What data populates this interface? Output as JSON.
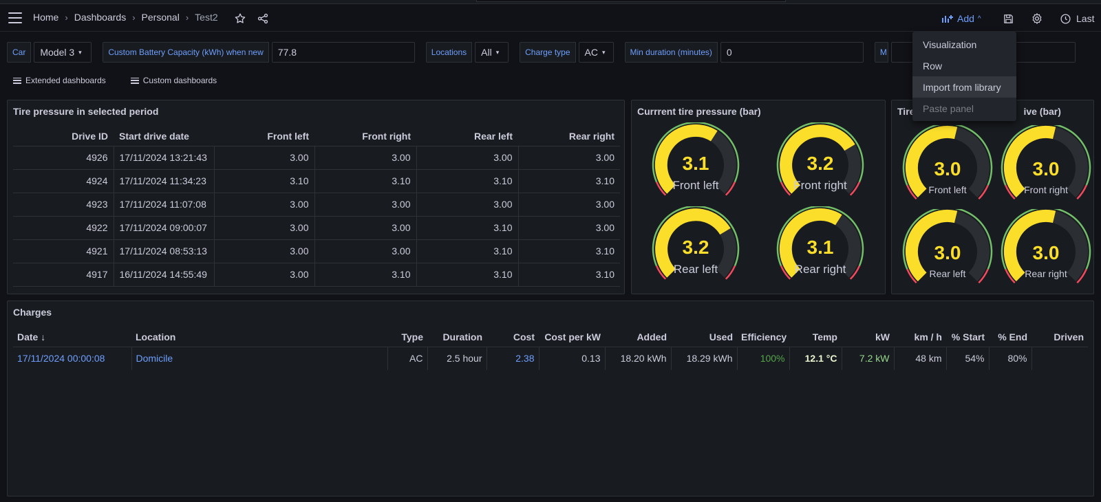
{
  "topbar": {
    "breadcrumbs": [
      "Home",
      "Dashboards",
      "Personal",
      "Test2"
    ],
    "add_label": "Add",
    "time_label": "Last"
  },
  "variables": {
    "car_label": "Car",
    "car_value": "Model 3",
    "capacity_label": "Custom Battery Capacity (kWh) when new",
    "capacity_value": "77.8",
    "locations_label": "Locations",
    "locations_value": "All",
    "charge_type_label": "Charge type",
    "charge_type_value": "AC",
    "min_duration_label": "Min duration (minutes)",
    "min_duration_value": "0",
    "partial_label": "M"
  },
  "links": [
    "Extended dashboards",
    "Custom dashboards"
  ],
  "tire_table": {
    "title": "Tire pressure in selected period",
    "columns": [
      "Drive ID",
      "Start drive date",
      "Front left",
      "Front right",
      "Rear left",
      "Rear right"
    ],
    "rows": [
      [
        "4926",
        "17/11/2024 13:21:43",
        "3.00",
        "3.00",
        "3.00",
        "3.00"
      ],
      [
        "4924",
        "17/11/2024 11:34:23",
        "3.10",
        "3.10",
        "3.10",
        "3.10"
      ],
      [
        "4923",
        "17/11/2024 11:07:08",
        "3.00",
        "3.00",
        "3.00",
        "3.00"
      ],
      [
        "4922",
        "17/11/2024 09:00:07",
        "3.00",
        "3.00",
        "3.10",
        "3.00"
      ],
      [
        "4921",
        "17/11/2024 08:53:13",
        "3.00",
        "3.00",
        "3.10",
        "3.10"
      ],
      [
        "4917",
        "16/11/2024 14:55:49",
        "3.00",
        "3.10",
        "3.10",
        "3.10"
      ]
    ]
  },
  "current_pressure": {
    "title": "Currrent tire pressure (bar)",
    "gauges": [
      {
        "value": "3.1",
        "level": 0.62,
        "label": "Front left"
      },
      {
        "value": "3.2",
        "level": 0.72,
        "label": "Front right"
      },
      {
        "value": "3.2",
        "level": 0.72,
        "label": "Rear left"
      },
      {
        "value": "3.1",
        "level": 0.62,
        "label": "Rear right"
      }
    ]
  },
  "drive_pressure": {
    "title_left": "Tire",
    "title_right": "ive (bar)",
    "gauges": [
      {
        "value": "3.0",
        "level": 0.55,
        "label": "Front left"
      },
      {
        "value": "3.0",
        "level": 0.55,
        "label": "Front right"
      },
      {
        "value": "3.0",
        "level": 0.55,
        "label": "Rear left"
      },
      {
        "value": "3.0",
        "level": 0.55,
        "label": "Rear right"
      }
    ]
  },
  "charges": {
    "title": "Charges",
    "columns": [
      "Date",
      "Location",
      "Type",
      "Duration",
      "Cost",
      "Cost per kW",
      "Added",
      "Used",
      "Efficiency",
      "Temp",
      "kW",
      "km / h",
      "% Start",
      "% End",
      "Driven"
    ],
    "row": {
      "date": "17/11/2024 00:00:08",
      "location": "Domicile",
      "type": "AC",
      "duration": "2.5 hour",
      "cost": "2.38",
      "cost_per_kw": "0.13",
      "added": "18.20 kWh",
      "used": "18.29 kWh",
      "efficiency": "100%",
      "temp": "12.1 °C",
      "kw": "7.2 kW",
      "kmh": "48 km",
      "start": "54%",
      "end": "80%",
      "driven": ""
    }
  },
  "add_menu": {
    "items": [
      "Visualization",
      "Row",
      "Import from library",
      "Paste panel"
    ]
  },
  "colors": {
    "accent": "#6e9fff",
    "gauge_value": "#fade2a",
    "green": "#73bf69",
    "red": "#f2495c"
  }
}
